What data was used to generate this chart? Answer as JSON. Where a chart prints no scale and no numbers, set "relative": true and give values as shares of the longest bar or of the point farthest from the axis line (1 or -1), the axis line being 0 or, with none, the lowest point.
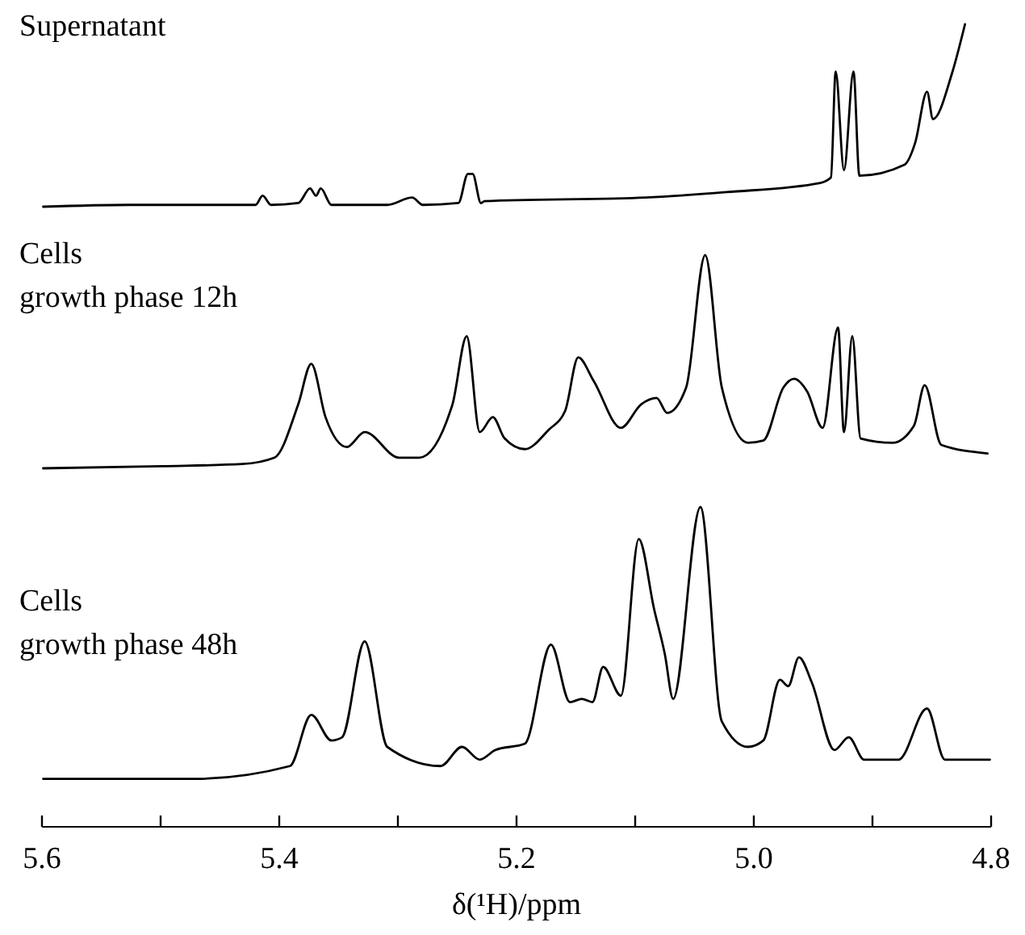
{
  "chart_data": [
    {
      "type": "line",
      "title": "Supernatant",
      "relative": true,
      "xlim": [
        5.6,
        4.8
      ],
      "tick_labels": false,
      "x": [
        5.599,
        5.527,
        5.431,
        5.42,
        5.414,
        5.407,
        5.384,
        5.374,
        5.369,
        5.365,
        5.356,
        5.309,
        5.288,
        5.279,
        5.249,
        5.241,
        5.237,
        5.23,
        5.227,
        5.091,
        5.023,
        4.944,
        4.935,
        4.931,
        4.924,
        4.916,
        4.911,
        4.873,
        4.864,
        4.854,
        4.849,
        4.833,
        4.822
      ],
      "series": [
        {
          "color": "#000000",
          "values": [
            0,
            0.01,
            0.01,
            0.01,
            0.06,
            0.01,
            0.02,
            0.1,
            0.06,
            0.1,
            0.01,
            0.01,
            0.05,
            0.01,
            0.02,
            0.18,
            0.18,
            0.02,
            0.03,
            0.05,
            0.08,
            0.13,
            0.16,
            0.74,
            0.2,
            0.74,
            0.17,
            0.23,
            0.35,
            0.63,
            0.48,
            0.73,
            1.0
          ]
        }
      ]
    },
    {
      "type": "line",
      "title": "Cells",
      "subtitle": "growth phase 12h",
      "relative": true,
      "xlim": [
        5.6,
        4.8
      ],
      "tick_labels": false,
      "x": [
        5.599,
        5.499,
        5.431,
        5.404,
        5.384,
        5.373,
        5.361,
        5.343,
        5.328,
        5.299,
        5.282,
        5.254,
        5.242,
        5.231,
        5.22,
        5.21,
        5.193,
        5.173,
        5.159,
        5.148,
        5.135,
        5.112,
        5.095,
        5.082,
        5.073,
        5.057,
        5.041,
        5.027,
        5.005,
        4.992,
        4.975,
        4.966,
        4.955,
        4.942,
        4.929,
        4.924,
        4.917,
        4.91,
        4.883,
        4.865,
        4.856,
        4.842,
        4.803
      ],
      "series": [
        {
          "color": "#000000",
          "values": [
            0,
            0.01,
            0.02,
            0.05,
            0.3,
            0.49,
            0.24,
            0.1,
            0.17,
            0.05,
            0.05,
            0.3,
            0.62,
            0.17,
            0.24,
            0.14,
            0.09,
            0.18,
            0.27,
            0.52,
            0.41,
            0.19,
            0.3,
            0.33,
            0.26,
            0.38,
            1.0,
            0.38,
            0.12,
            0.13,
            0.38,
            0.42,
            0.36,
            0.19,
            0.66,
            0.17,
            0.62,
            0.14,
            0.12,
            0.2,
            0.39,
            0.11,
            0.07
          ]
        }
      ]
    },
    {
      "type": "line",
      "title": "Cells",
      "subtitle": "growth phase 48h",
      "relative": true,
      "xlim": [
        5.6,
        4.8
      ],
      "tick_labels": "x",
      "xlabel": "δ(¹H)/ppm",
      "xticks": [
        5.6,
        {
          "value": 5.5,
          "label": null
        },
        5.4,
        {
          "value": 5.3,
          "label": null
        },
        5.2,
        {
          "value": 5.1,
          "label": null
        },
        {
          "value": 5,
          "label": "5.0"
        },
        {
          "value": 4.9,
          "label": null
        },
        4.8
      ],
      "x": [
        5.599,
        5.472,
        5.391,
        5.373,
        5.356,
        5.347,
        5.328,
        5.309,
        5.264,
        5.246,
        5.231,
        5.218,
        5.193,
        5.171,
        5.155,
        5.145,
        5.136,
        5.127,
        5.112,
        5.097,
        5.084,
        5.075,
        5.068,
        5.045,
        5.027,
        5.005,
        4.992,
        4.978,
        4.971,
        4.962,
        4.951,
        4.932,
        4.92,
        4.907,
        4.878,
        4.854,
        4.839,
        4.801
      ],
      "series": [
        {
          "color": "#000000",
          "values": [
            0.15,
            0.15,
            0.19,
            0.35,
            0.27,
            0.28,
            0.58,
            0.25,
            0.19,
            0.25,
            0.21,
            0.24,
            0.26,
            0.57,
            0.39,
            0.4,
            0.39,
            0.5,
            0.41,
            0.9,
            0.68,
            0.54,
            0.4,
            1.0,
            0.33,
            0.25,
            0.27,
            0.46,
            0.44,
            0.53,
            0.45,
            0.24,
            0.28,
            0.21,
            0.21,
            0.37,
            0.21,
            0.21
          ]
        }
      ]
    }
  ]
}
